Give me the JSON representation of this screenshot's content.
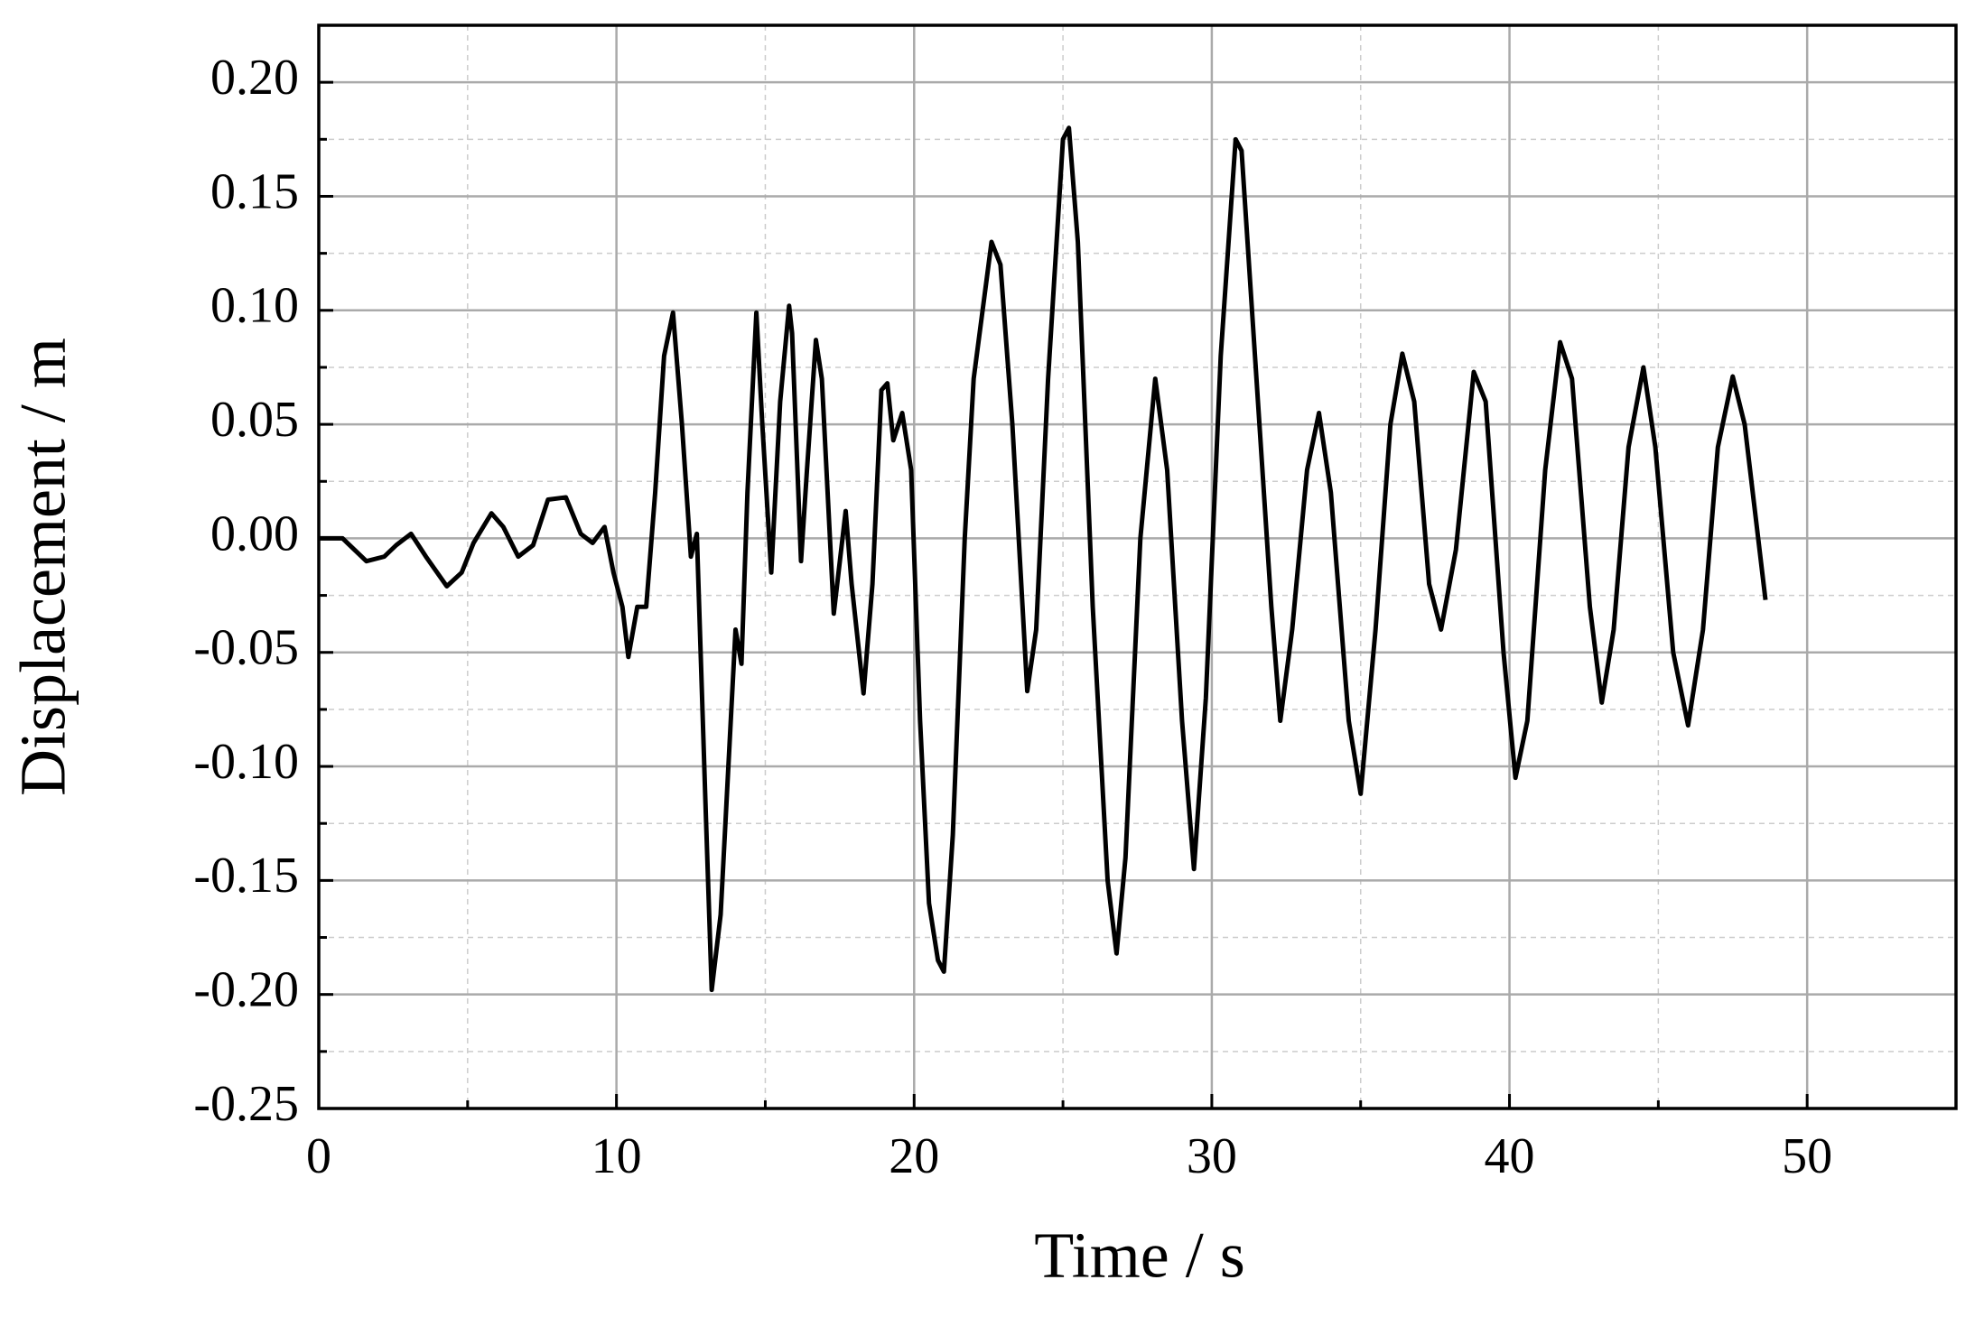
{
  "chart_data": {
    "type": "line",
    "xlabel": "Time / s",
    "ylabel": "Displacement / m",
    "x": [
      0,
      0.8,
      1.6,
      2.2,
      2.6,
      3.1,
      3.6,
      4.3,
      4.8,
      5.2,
      5.8,
      6.2,
      6.7,
      7.2,
      7.7,
      8.3,
      8.8,
      9.2,
      9.6,
      9.9,
      10.2,
      10.4,
      10.7,
      11.0,
      11.3,
      11.6,
      11.9,
      12.2,
      12.5,
      12.7,
      13.0,
      13.2,
      13.5,
      13.8,
      14.0,
      14.2,
      14.4,
      14.7,
      14.9,
      15.2,
      15.5,
      15.8,
      15.9,
      16.2,
      16.4,
      16.7,
      16.9,
      17.3,
      17.7,
      17.9,
      18.3,
      18.6,
      18.9,
      19.1,
      19.3,
      19.6,
      19.9,
      20.2,
      20.5,
      20.8,
      21.0,
      21.3,
      21.7,
      22.0,
      22.3,
      22.6,
      22.9,
      23.3,
      23.8,
      24.1,
      24.5,
      25.0,
      25.2,
      25.5,
      26.0,
      26.5,
      26.8,
      27.1,
      27.6,
      28.1,
      28.5,
      29.0,
      29.4,
      29.8,
      30.3,
      30.8,
      31.0,
      31.5,
      32.0,
      32.3,
      32.7,
      33.2,
      33.6,
      34.0,
      34.6,
      35.0,
      35.5,
      36.0,
      36.4,
      36.8,
      37.3,
      37.7,
      38.2,
      38.8,
      39.2,
      39.8,
      40.2,
      40.6,
      41.2,
      41.7,
      42.1,
      42.7,
      43.1,
      43.5,
      44.0,
      44.5,
      44.9,
      45.5,
      46.0,
      46.5,
      47.0,
      47.5,
      47.9,
      48.6
    ],
    "series": [
      {
        "name": "Displacement",
        "color": "#000000",
        "values": [
          0,
          0,
          -0.01,
          -0.008,
          -0.003,
          0.002,
          -0.008,
          -0.021,
          -0.015,
          -0.002,
          0.011,
          0.005,
          -0.008,
          -0.003,
          0.017,
          0.018,
          0.002,
          -0.002,
          0.005,
          -0.015,
          -0.03,
          -0.052,
          -0.03,
          -0.03,
          0.02,
          0.08,
          0.099,
          0.05,
          -0.008,
          0.002,
          -0.12,
          -0.198,
          -0.165,
          -0.09,
          -0.04,
          -0.055,
          0.02,
          0.099,
          0.05,
          -0.015,
          0.06,
          0.102,
          0.09,
          -0.01,
          0.03,
          0.087,
          0.07,
          -0.033,
          0.012,
          -0.02,
          -0.068,
          -0.02,
          0.065,
          0.068,
          0.043,
          0.055,
          0.03,
          -0.08,
          -0.16,
          -0.185,
          -0.19,
          -0.13,
          0,
          0.07,
          0.1,
          0.13,
          0.12,
          0.05,
          -0.067,
          -0.04,
          0.07,
          0.175,
          0.18,
          0.13,
          -0.03,
          -0.15,
          -0.182,
          -0.14,
          0,
          0.07,
          0.03,
          -0.08,
          -0.145,
          -0.07,
          0.08,
          0.175,
          0.17,
          0.07,
          -0.03,
          -0.08,
          -0.04,
          0.03,
          0.055,
          0.02,
          -0.08,
          -0.112,
          -0.04,
          0.05,
          0.081,
          0.06,
          -0.02,
          -0.04,
          -0.005,
          0.073,
          0.06,
          -0.05,
          -0.105,
          -0.08,
          0.03,
          0.086,
          0.07,
          -0.03,
          -0.072,
          -0.04,
          0.04,
          0.075,
          0.04,
          -0.05,
          -0.082,
          -0.04,
          0.04,
          0.071,
          0.05,
          -0.027
        ]
      }
    ],
    "xlim": [
      0,
      55
    ],
    "xticks": [
      0,
      10,
      20,
      30,
      40,
      50
    ],
    "xminorticks": [
      5,
      15,
      25,
      35,
      45,
      55
    ],
    "ylim": [
      -0.25,
      0.225
    ],
    "yticks": [
      -0.25,
      {
        "value": -0.2,
        "label": "-0.20"
      },
      -0.15,
      {
        "value": -0.1,
        "label": "-0.10"
      },
      -0.05,
      {
        "value": 0,
        "label": "0.00"
      },
      0.05,
      {
        "value": 0.1,
        "label": "0.10"
      },
      0.15,
      {
        "value": 0.2,
        "label": "0.20"
      }
    ],
    "yminorticks": [
      -0.225,
      -0.175,
      -0.125,
      -0.075,
      -0.025,
      0.025,
      0.075,
      0.125,
      0.175,
      0.225
    ],
    "grid": true
  }
}
